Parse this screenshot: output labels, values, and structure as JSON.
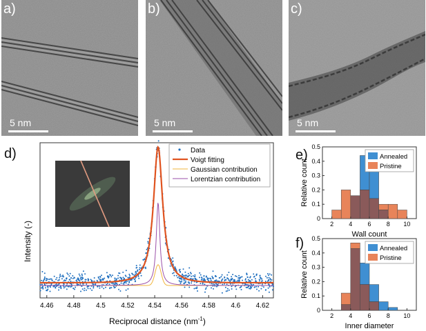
{
  "figure": {
    "panels": [
      {
        "label": "a)",
        "scale_bar": "5 nm"
      },
      {
        "label": "b)",
        "scale_bar": "5 nm"
      },
      {
        "label": "c)",
        "scale_bar": "5 nm"
      }
    ],
    "panel_d_label": "d)",
    "panel_e_label": "e)",
    "panel_f_label": "f)"
  },
  "chart_data": [
    {
      "type": "scatter",
      "id": "d",
      "xlabel": "Reciprocal distance (nm",
      "xlabel_sup": "-1",
      "xlabel_end": ")",
      "ylabel": "Intensity (-)",
      "xlim": [
        4.455,
        4.628
      ],
      "xticks": [
        "4.46",
        "4.48",
        "4.5",
        "4.52",
        "4.54",
        "4.56",
        "4.58",
        "4.6",
        "4.62"
      ],
      "legend": [
        "Data",
        "Voigt fitting",
        "Gaussian contribution",
        "Lorentzian contribution"
      ],
      "peak_center": 4.5425,
      "peak_intensity": 1.0,
      "baseline": 0.02,
      "colors": {
        "data": "#1f6fbf",
        "voigt": "#e0531f",
        "gaussian": "#f0b43c",
        "lorentzian": "#9a4fa8"
      }
    },
    {
      "type": "bar",
      "id": "e",
      "xlabel": "Wall count",
      "ylabel": "Relative count",
      "bin_edges": [
        2,
        3,
        4,
        5,
        6,
        7,
        8,
        9,
        10
      ],
      "ylim": [
        0,
        0.5
      ],
      "yticks": [
        "0",
        "0.1",
        "0.2",
        "0.3",
        "0.4",
        "0.5"
      ],
      "xticks": [
        "2",
        "4",
        "6",
        "8",
        "10"
      ],
      "series": [
        {
          "name": "Annealed",
          "values": [
            0,
            0,
            0.16,
            0.44,
            0.34,
            0.06,
            0,
            0
          ]
        },
        {
          "name": "Pristine",
          "values": [
            0.06,
            0.2,
            0.16,
            0.2,
            0.14,
            0.1,
            0.1,
            0.06
          ]
        }
      ],
      "colors": {
        "Annealed": "#3f8fd2",
        "Pristine": "#e8845a",
        "overlap": "#8a5a5a"
      }
    },
    {
      "type": "bar",
      "id": "f",
      "xlabel": "Inner diameter",
      "ylabel": "Relative count",
      "bin_edges": [
        3,
        4,
        5,
        6,
        7,
        8,
        9
      ],
      "ylim": [
        0,
        0.5
      ],
      "yticks": [
        "0",
        "0.1",
        "0.2",
        "0.3",
        "0.4",
        "0.5"
      ],
      "xticks": [
        "2",
        "4",
        "6",
        "8",
        "10"
      ],
      "series": [
        {
          "name": "Annealed",
          "values": [
            0.04,
            0.43,
            0.33,
            0.18,
            0.06,
            0.02
          ]
        },
        {
          "name": "Pristine",
          "values": [
            0.12,
            0.47,
            0.18,
            0.06,
            0,
            0
          ]
        }
      ],
      "colors": {
        "Annealed": "#3f8fd2",
        "Pristine": "#e8845a",
        "overlap": "#8a5a5a"
      }
    }
  ]
}
